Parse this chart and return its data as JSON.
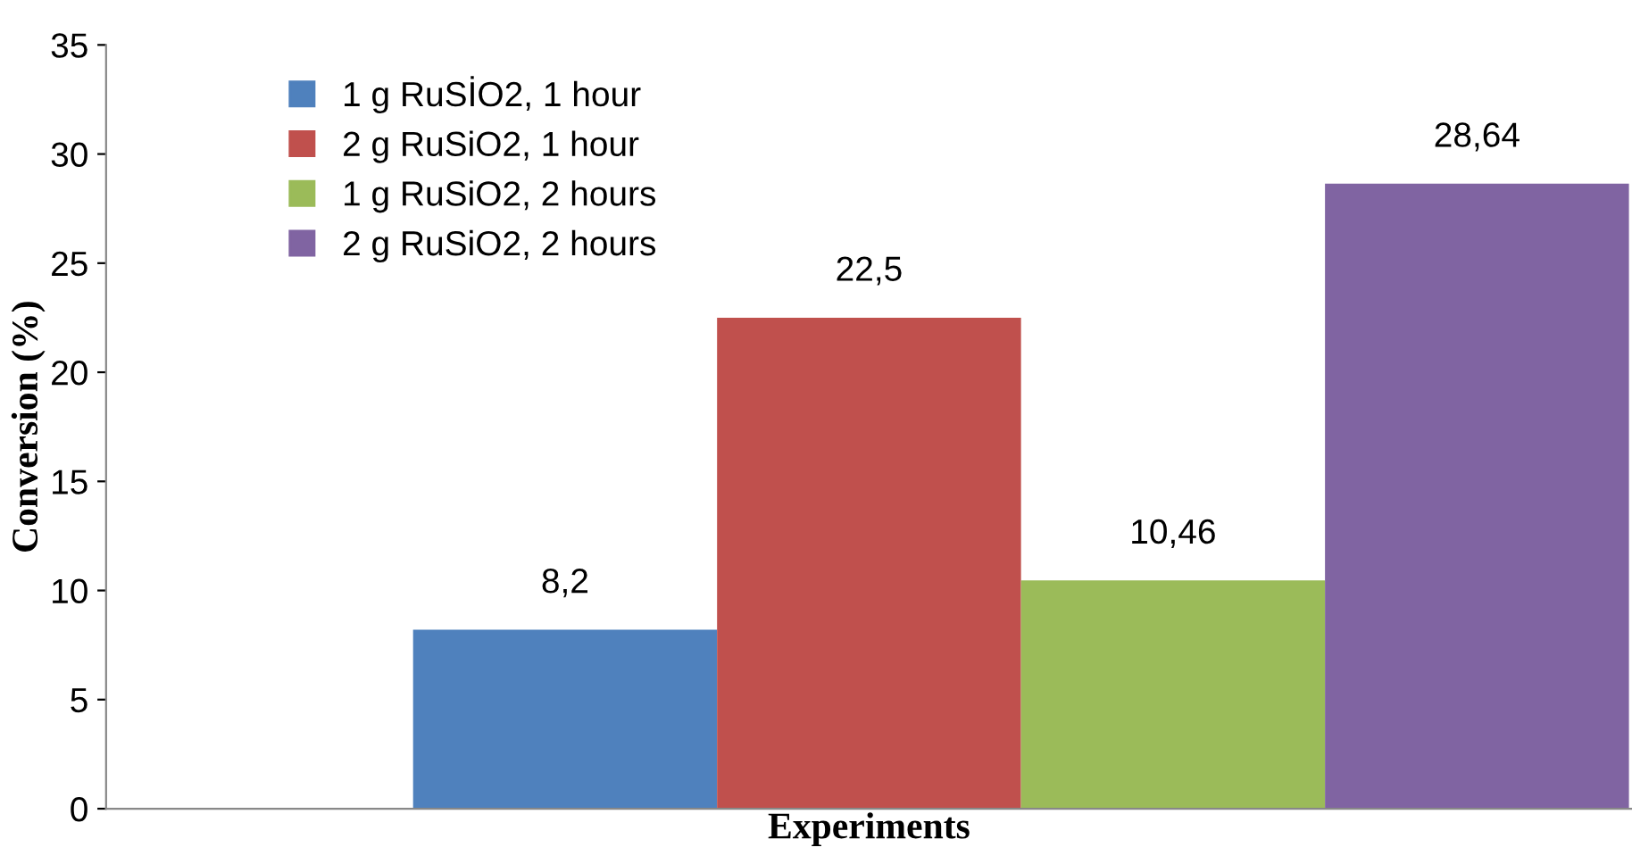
{
  "chart_data": {
    "type": "bar",
    "xlabel": "Experiments",
    "ylabel": "Conversion (%)",
    "categories": [
      null
    ],
    "series": [
      {
        "name": "1 g RuSİO2, 1 hour",
        "color": "#4f81bd",
        "values": [
          8.2
        ],
        "value_labels": [
          "8,2"
        ]
      },
      {
        "name": "2 g RuSiO2, 1 hour",
        "color": "#c0504d",
        "values": [
          22.5
        ],
        "value_labels": [
          "22,5"
        ]
      },
      {
        "name": "1 g RuSiO2, 2 hours",
        "color": "#9bbb59",
        "values": [
          10.46
        ],
        "value_labels": [
          "10,46"
        ]
      },
      {
        "name": "2 g RuSiO2, 2 hours",
        "color": "#8064a2",
        "values": [
          28.64
        ],
        "value_labels": [
          "28,64"
        ]
      }
    ],
    "ylim": [
      0,
      35
    ],
    "yticks": [
      0,
      5,
      10,
      15,
      20,
      25,
      30,
      35
    ],
    "grid": false,
    "legend": "top left"
  }
}
